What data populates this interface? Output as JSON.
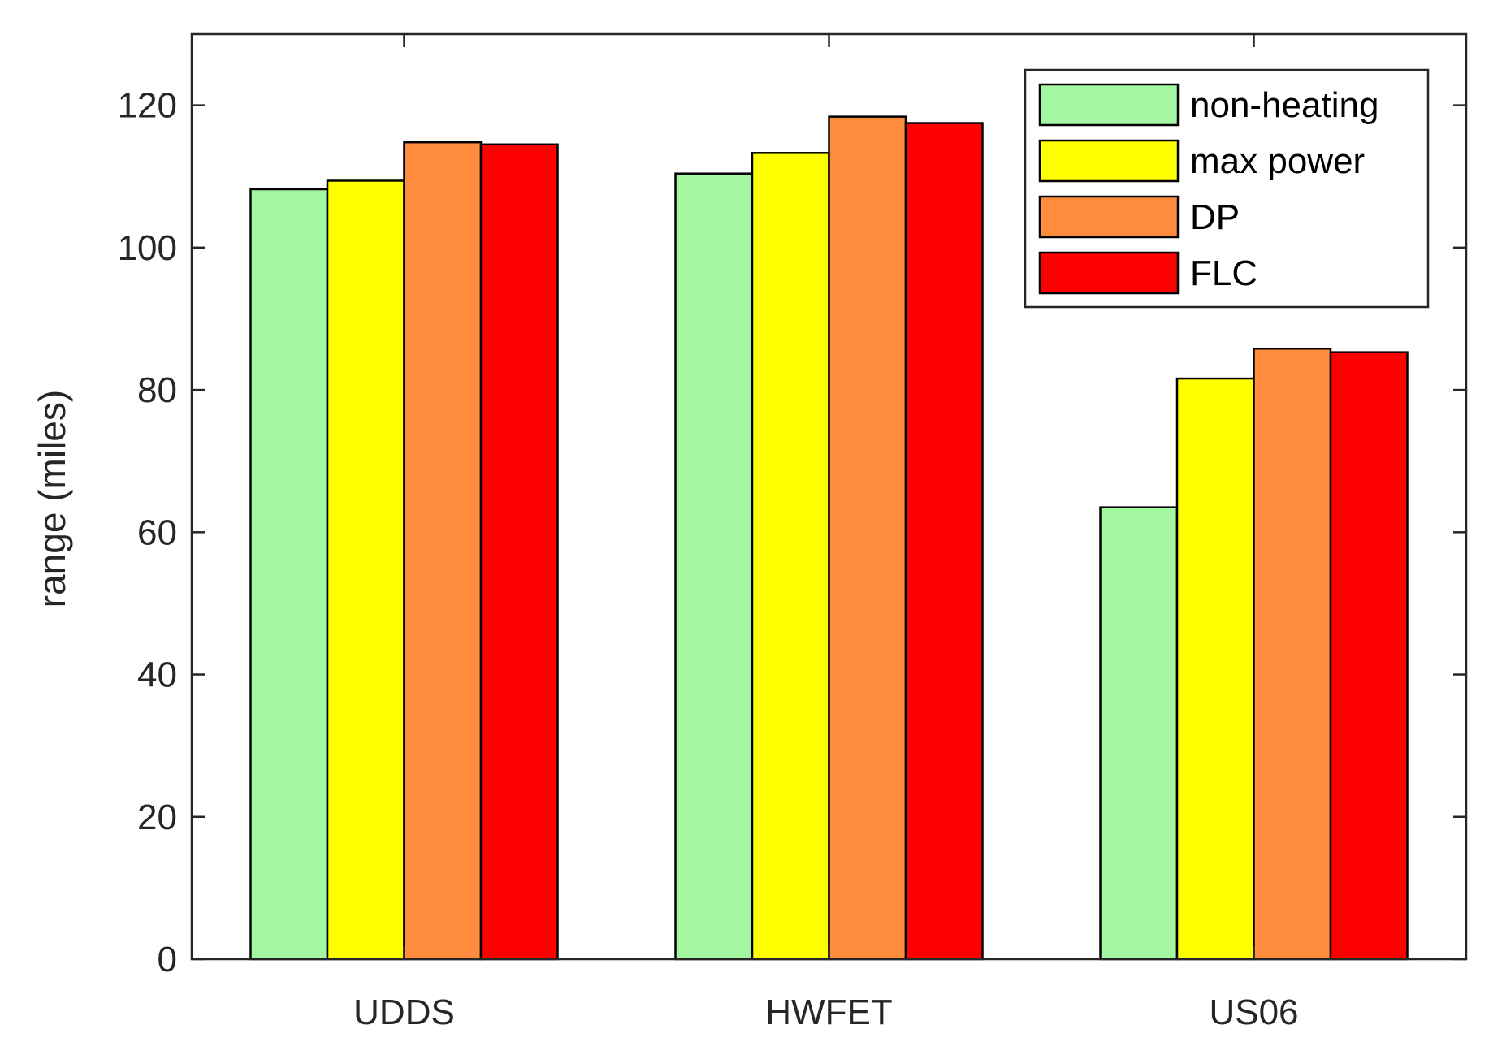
{
  "chart_data": {
    "type": "bar",
    "categories": [
      "UDDS",
      "HWFET",
      "US06"
    ],
    "series": [
      {
        "name": "non-heating",
        "color": "#a3f7a0",
        "values": [
          108.2,
          110.4,
          63.5
        ]
      },
      {
        "name": "max power",
        "color": "#ffff00",
        "values": [
          109.4,
          113.3,
          81.6
        ]
      },
      {
        "name": "DP",
        "color": "#ff8c3c",
        "values": [
          114.8,
          118.4,
          85.8
        ]
      },
      {
        "name": "FLC",
        "color": "#ff0000",
        "values": [
          114.5,
          117.5,
          85.3
        ]
      }
    ],
    "title": "",
    "xlabel": "",
    "ylabel": "range (miles)",
    "ylim": [
      0,
      130
    ],
    "yticks": [
      0,
      20,
      40,
      60,
      80,
      100,
      120
    ],
    "grid": false,
    "legend_position": "top-right"
  }
}
